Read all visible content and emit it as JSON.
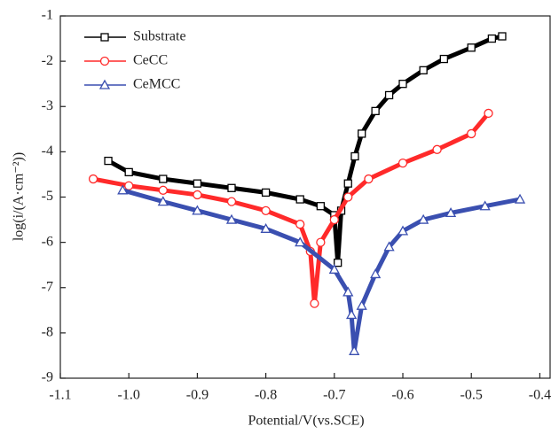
{
  "chart_data": {
    "type": "line",
    "x_label": "Potential/V(vs.SCE)",
    "y_label": "log(i/(A·cm⁻²))",
    "xlim": [
      -1.1,
      -0.385
    ],
    "ylim": [
      -9,
      -1
    ],
    "xticks": [
      -1.1,
      {
        "value": -1,
        "label": "-1.0"
      },
      -0.9,
      -0.8,
      -0.7,
      -0.6,
      -0.5,
      -0.4
    ],
    "yticks": [
      -9,
      -8,
      -7,
      -6,
      -5,
      -4,
      -3,
      -2,
      -1
    ],
    "legend": "upper left",
    "series": [
      {
        "name": "Substrate",
        "color": "#000000",
        "marker": "square",
        "x": [
          -1.03,
          -1.0,
          -0.95,
          -0.9,
          -0.85,
          -0.8,
          -0.75,
          -0.72,
          -0.7,
          -0.695,
          -0.69,
          -0.68,
          -0.67,
          -0.66,
          -0.64,
          -0.62,
          -0.6,
          -0.57,
          -0.54,
          -0.5,
          -0.47,
          -0.455
        ],
        "values": [
          -4.2,
          -4.45,
          -4.6,
          -4.7,
          -4.8,
          -4.9,
          -5.05,
          -5.2,
          -5.4,
          -6.45,
          -5.3,
          -4.7,
          -4.1,
          -3.6,
          -3.1,
          -2.75,
          -2.5,
          -2.2,
          -1.95,
          -1.7,
          -1.5,
          -1.45
        ]
      },
      {
        "name": "CeCC",
        "color": "#ff2a2a",
        "marker": "circle",
        "x": [
          -1.052,
          -1.0,
          -0.95,
          -0.9,
          -0.85,
          -0.8,
          -0.75,
          -0.735,
          -0.729,
          -0.72,
          -0.7,
          -0.68,
          -0.65,
          -0.6,
          -0.55,
          -0.5,
          -0.475
        ],
        "values": [
          -4.6,
          -4.75,
          -4.85,
          -4.95,
          -5.1,
          -5.3,
          -5.6,
          -6.2,
          -7.35,
          -6.0,
          -5.5,
          -5.0,
          -4.6,
          -4.25,
          -3.95,
          -3.6,
          -3.15
        ]
      },
      {
        "name": "CeMCC",
        "color": "#3a4fb0",
        "marker": "triangle",
        "x": [
          -1.009,
          -0.95,
          -0.9,
          -0.85,
          -0.8,
          -0.75,
          -0.7,
          -0.68,
          -0.675,
          -0.671,
          -0.66,
          -0.64,
          -0.62,
          -0.6,
          -0.57,
          -0.53,
          -0.48,
          -0.429
        ],
        "values": [
          -4.85,
          -5.1,
          -5.3,
          -5.5,
          -5.7,
          -6.0,
          -6.6,
          -7.1,
          -7.6,
          -8.4,
          -7.4,
          -6.7,
          -6.1,
          -5.75,
          -5.5,
          -5.35,
          -5.2,
          -5.05
        ]
      }
    ]
  }
}
